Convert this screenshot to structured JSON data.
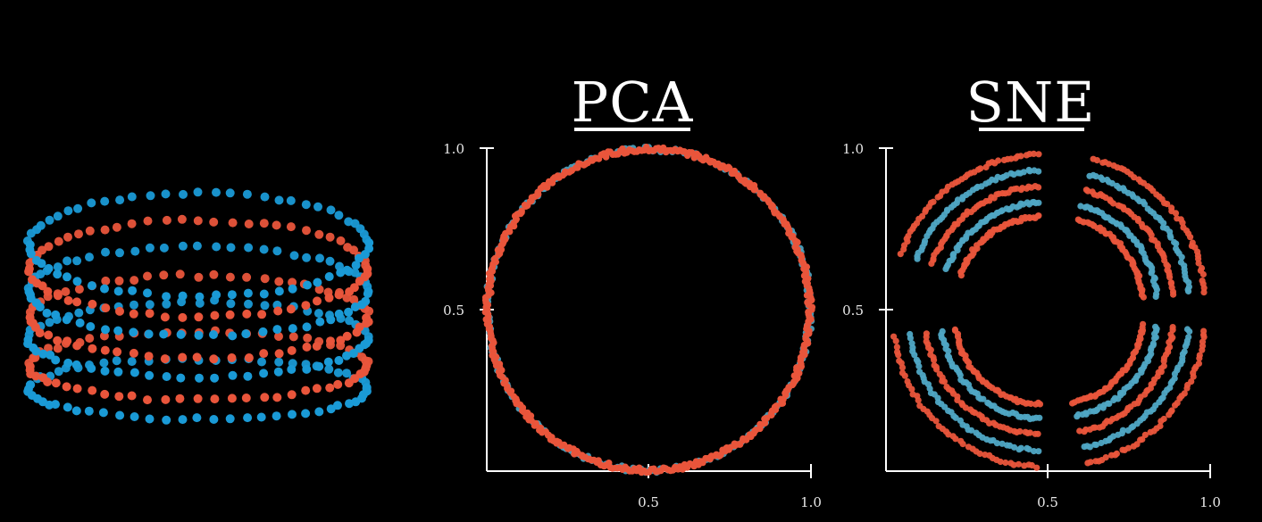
{
  "colors": {
    "background": "#000000",
    "red": "#e9553b",
    "blue": "#1a9ad6",
    "blue_sne": "#4fa6c4",
    "axis": "#ffffff"
  },
  "chart_data": [
    {
      "id": "cylinder",
      "type": "scatter",
      "title": "",
      "series": [
        {
          "color_key": "blue",
          "rings": [
            0,
            2,
            4,
            6
          ]
        },
        {
          "color_key": "red",
          "rings": [
            1,
            3,
            5
          ]
        }
      ]
    },
    {
      "id": "pca",
      "type": "scatter",
      "title": "PCA",
      "xlim": [
        0,
        1.0
      ],
      "ylim": [
        0,
        1.0
      ],
      "x_ticks": [
        "0.5",
        "1.0"
      ],
      "y_ticks": [
        "0.5",
        "1.0"
      ],
      "shape": "circle",
      "center": [
        0.5,
        0.5
      ],
      "radius": 0.5
    },
    {
      "id": "sne",
      "type": "scatter",
      "title": "SNE",
      "xlim": [
        0,
        1.0
      ],
      "ylim": [
        0,
        1.0
      ],
      "x_ticks": [
        "0.5",
        "1.0"
      ],
      "y_ticks": [
        "0.5",
        "1.0"
      ],
      "shape": "four arc clusters"
    }
  ]
}
